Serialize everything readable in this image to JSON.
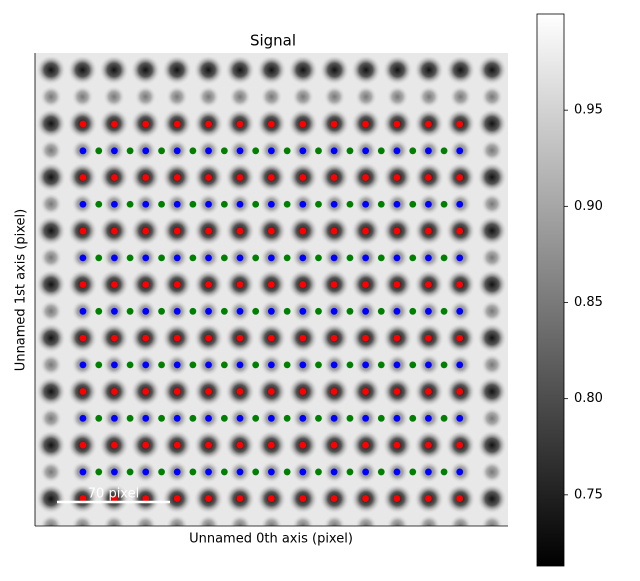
{
  "chart_data": {
    "type": "scatter",
    "title": "Signal",
    "xlabel": "Unnamed 0th axis (pixel)",
    "ylabel": "Unnamed 1st axis (pixel)",
    "xlim": [
      0,
      293
    ],
    "ylim": [
      293,
      0
    ],
    "scalebar": {
      "label": "70 pixel",
      "length": 70
    },
    "colorbar": {
      "clim": [
        0.713,
        1.0
      ],
      "ticks": [
        0.75,
        {
          "value": 0.8,
          "label": "0.80"
        },
        0.85,
        {
          "value": 0.9,
          "label": "0.90"
        },
        0.95
      ]
    },
    "series": [
      {
        "color": "#ff0000",
        "x": [
          29.7,
          49.2,
          68.6,
          88.1,
          107.5,
          127,
          146.4,
          165.9,
          185.3,
          204.8,
          224.2,
          243.7,
          263.1,
          29.7,
          49.2,
          68.6,
          88.1,
          107.5,
          127,
          146.4,
          165.9,
          185.3,
          204.8,
          224.2,
          243.7,
          263.1,
          29.7,
          49.2,
          68.6,
          88.1,
          107.5,
          127,
          146.4,
          165.9,
          185.3,
          204.8,
          224.2,
          243.7,
          263.1,
          29.7,
          49.2,
          68.6,
          88.1,
          107.5,
          127,
          146.4,
          165.9,
          185.3,
          204.8,
          224.2,
          243.7,
          263.1,
          29.7,
          49.2,
          68.6,
          88.1,
          107.5,
          127,
          146.4,
          165.9,
          185.3,
          204.8,
          224.2,
          243.7,
          263.1,
          29.7,
          49.2,
          68.6,
          88.1,
          107.5,
          127,
          146.4,
          165.9,
          185.3,
          204.8,
          224.2,
          243.7,
          263.1,
          29.7,
          49.2,
          68.6,
          88.1,
          107.5,
          127,
          146.4,
          165.9,
          185.3,
          204.8,
          224.2,
          243.7,
          263.1,
          29.7,
          49.2,
          68.6,
          88.1,
          107.5,
          127,
          146.4,
          165.9,
          185.3,
          204.8,
          224.2,
          243.7,
          263.1
        ],
        "y": [
          44,
          44,
          44,
          44,
          44,
          44,
          44,
          44,
          44,
          44,
          44,
          44,
          44,
          77.1,
          77.1,
          77.1,
          77.1,
          77.1,
          77.1,
          77.1,
          77.1,
          77.1,
          77.1,
          77.1,
          77.1,
          77.1,
          110.3,
          110.3,
          110.3,
          110.3,
          110.3,
          110.3,
          110.3,
          110.3,
          110.3,
          110.3,
          110.3,
          110.3,
          110.3,
          143.4,
          143.4,
          143.4,
          143.4,
          143.4,
          143.4,
          143.4,
          143.4,
          143.4,
          143.4,
          143.4,
          143.4,
          143.4,
          176.6,
          176.6,
          176.6,
          176.6,
          176.6,
          176.6,
          176.6,
          176.6,
          176.6,
          176.6,
          176.6,
          176.6,
          176.6,
          209.7,
          209.7,
          209.7,
          209.7,
          209.7,
          209.7,
          209.7,
          209.7,
          209.7,
          209.7,
          209.7,
          209.7,
          209.7,
          242.9,
          242.9,
          242.9,
          242.9,
          242.9,
          242.9,
          242.9,
          242.9,
          242.9,
          242.9,
          242.9,
          242.9,
          242.9,
          276,
          276,
          276,
          276,
          276,
          276,
          276,
          276,
          276,
          276,
          276,
          276,
          276
        ]
      },
      {
        "color": "#0000ff",
        "x": [
          29.7,
          49.2,
          68.6,
          88.1,
          107.5,
          127,
          146.4,
          165.9,
          185.3,
          204.8,
          224.2,
          243.7,
          263.1,
          29.7,
          49.2,
          68.6,
          88.1,
          107.5,
          127,
          146.4,
          165.9,
          185.3,
          204.8,
          224.2,
          243.7,
          263.1,
          29.7,
          49.2,
          68.6,
          88.1,
          107.5,
          127,
          146.4,
          165.9,
          185.3,
          204.8,
          224.2,
          243.7,
          263.1,
          29.7,
          49.2,
          68.6,
          88.1,
          107.5,
          127,
          146.4,
          165.9,
          185.3,
          204.8,
          224.2,
          243.7,
          263.1,
          29.7,
          49.2,
          68.6,
          88.1,
          107.5,
          127,
          146.4,
          165.9,
          185.3,
          204.8,
          224.2,
          243.7,
          263.1,
          29.7,
          49.2,
          68.6,
          88.1,
          107.5,
          127,
          146.4,
          165.9,
          185.3,
          204.8,
          224.2,
          243.7,
          263.1,
          29.7,
          49.2,
          68.6,
          88.1,
          107.5,
          127,
          146.4,
          165.9,
          185.3,
          204.8,
          224.2,
          243.7,
          263.1
        ],
        "y": [
          60.6,
          60.6,
          60.6,
          60.6,
          60.6,
          60.6,
          60.6,
          60.6,
          60.6,
          60.6,
          60.6,
          60.6,
          60.6,
          93.7,
          93.7,
          93.7,
          93.7,
          93.7,
          93.7,
          93.7,
          93.7,
          93.7,
          93.7,
          93.7,
          93.7,
          93.7,
          126.9,
          126.9,
          126.9,
          126.9,
          126.9,
          126.9,
          126.9,
          126.9,
          126.9,
          126.9,
          126.9,
          126.9,
          126.9,
          160,
          160,
          160,
          160,
          160,
          160,
          160,
          160,
          160,
          160,
          160,
          160,
          160,
          193.2,
          193.2,
          193.2,
          193.2,
          193.2,
          193.2,
          193.2,
          193.2,
          193.2,
          193.2,
          193.2,
          193.2,
          193.2,
          226.3,
          226.3,
          226.3,
          226.3,
          226.3,
          226.3,
          226.3,
          226.3,
          226.3,
          226.3,
          226.3,
          226.3,
          226.3,
          259.5,
          259.5,
          259.5,
          259.5,
          259.5,
          259.5,
          259.5,
          259.5,
          259.5,
          259.5,
          259.5,
          259.5,
          259.5
        ]
      },
      {
        "color": "#008000",
        "x": [
          39.5,
          58.9,
          78.4,
          97.8,
          117.3,
          136.7,
          156.2,
          175.6,
          195.1,
          214.5,
          234,
          253.4,
          39.5,
          58.9,
          78.4,
          97.8,
          117.3,
          136.7,
          156.2,
          175.6,
          195.1,
          214.5,
          234,
          253.4,
          39.5,
          58.9,
          78.4,
          97.8,
          117.3,
          136.7,
          156.2,
          175.6,
          195.1,
          214.5,
          234,
          253.4,
          39.5,
          58.9,
          78.4,
          97.8,
          117.3,
          136.7,
          156.2,
          175.6,
          195.1,
          214.5,
          234,
          253.4,
          39.5,
          58.9,
          78.4,
          97.8,
          117.3,
          136.7,
          156.2,
          175.6,
          195.1,
          214.5,
          234,
          253.4,
          39.5,
          58.9,
          78.4,
          97.8,
          117.3,
          136.7,
          156.2,
          175.6,
          195.1,
          214.5,
          234,
          253.4,
          39.5,
          58.9,
          78.4,
          97.8,
          117.3,
          136.7,
          156.2,
          175.6,
          195.1,
          214.5,
          234,
          253.4
        ],
        "y": [
          60.6,
          60.6,
          60.6,
          60.6,
          60.6,
          60.6,
          60.6,
          60.6,
          60.6,
          60.6,
          60.6,
          60.6,
          93.7,
          93.7,
          93.7,
          93.7,
          93.7,
          93.7,
          93.7,
          93.7,
          93.7,
          93.7,
          93.7,
          93.7,
          126.9,
          126.9,
          126.9,
          126.9,
          126.9,
          126.9,
          126.9,
          126.9,
          126.9,
          126.9,
          126.9,
          126.9,
          160,
          160,
          160,
          160,
          160,
          160,
          160,
          160,
          160,
          160,
          160,
          160,
          193.2,
          193.2,
          193.2,
          193.2,
          193.2,
          193.2,
          193.2,
          193.2,
          193.2,
          193.2,
          193.2,
          193.2,
          226.3,
          226.3,
          226.3,
          226.3,
          226.3,
          226.3,
          226.3,
          226.3,
          226.3,
          226.3,
          226.3,
          226.3,
          259.5,
          259.5,
          259.5,
          259.5,
          259.5,
          259.5,
          259.5,
          259.5,
          259.5,
          259.5,
          259.5,
          259.5
        ]
      }
    ]
  }
}
